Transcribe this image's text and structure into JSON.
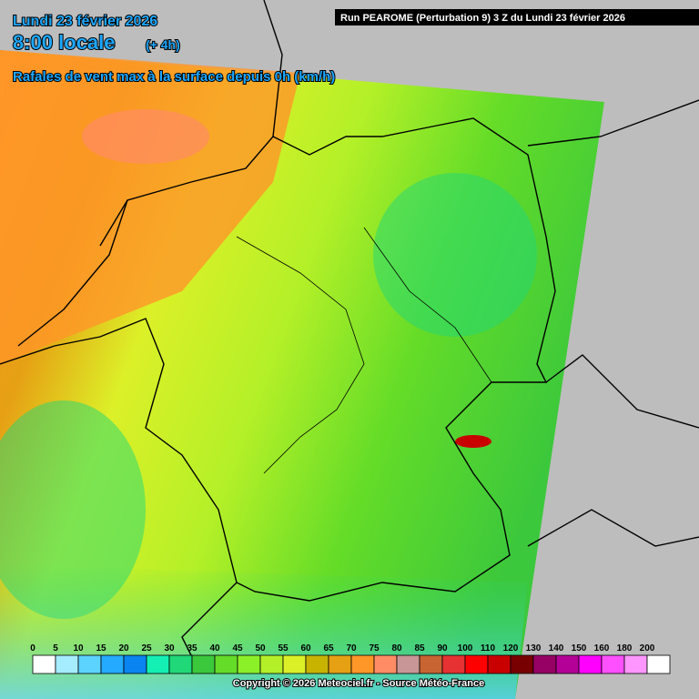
{
  "header": {
    "date": "Lundi 23 février 2026",
    "time": "8:00 locale",
    "offset": "(+ 4h)",
    "field": "Rafales de vent max à la surface depuis 0h (km/h)",
    "run": "Run PEAROME (Perturbation 9) 3 Z du Lundi 23 février 2026"
  },
  "legend": {
    "stops": [
      {
        "value": 0,
        "color": "#ffffff"
      },
      {
        "value": 5,
        "color": "#a6ecff"
      },
      {
        "value": 10,
        "color": "#5cd2ff"
      },
      {
        "value": 15,
        "color": "#24aaff"
      },
      {
        "value": 20,
        "color": "#0a84f0"
      },
      {
        "value": 25,
        "color": "#14f0b4"
      },
      {
        "value": 30,
        "color": "#20d878"
      },
      {
        "value": 35,
        "color": "#3cc83c"
      },
      {
        "value": 40,
        "color": "#64dc28"
      },
      {
        "value": 45,
        "color": "#8cf028"
      },
      {
        "value": 50,
        "color": "#b4f028"
      },
      {
        "value": 55,
        "color": "#dcf028"
      },
      {
        "value": 60,
        "color": "#c8b400"
      },
      {
        "value": 65,
        "color": "#e6a014"
      },
      {
        "value": 70,
        "color": "#ff9628"
      },
      {
        "value": 75,
        "color": "#ff8c64"
      },
      {
        "value": 80,
        "color": "#c89696"
      },
      {
        "value": 85,
        "color": "#c86432"
      },
      {
        "value": 90,
        "color": "#e63232"
      },
      {
        "value": 100,
        "color": "#ff0000"
      },
      {
        "value": 110,
        "color": "#c80000"
      },
      {
        "value": 120,
        "color": "#780000"
      },
      {
        "value": 130,
        "color": "#960064"
      },
      {
        "value": 140,
        "color": "#b40096"
      },
      {
        "value": 150,
        "color": "#ff00ff"
      },
      {
        "value": 160,
        "color": "#ff50ff"
      },
      {
        "value": 180,
        "color": "#ff96ff"
      },
      {
        "value": 200,
        "color": "#ffffff"
      }
    ]
  },
  "footer": {
    "copyright": "Copyright © 2026 Meteociel.fr - Source Météo-France"
  }
}
